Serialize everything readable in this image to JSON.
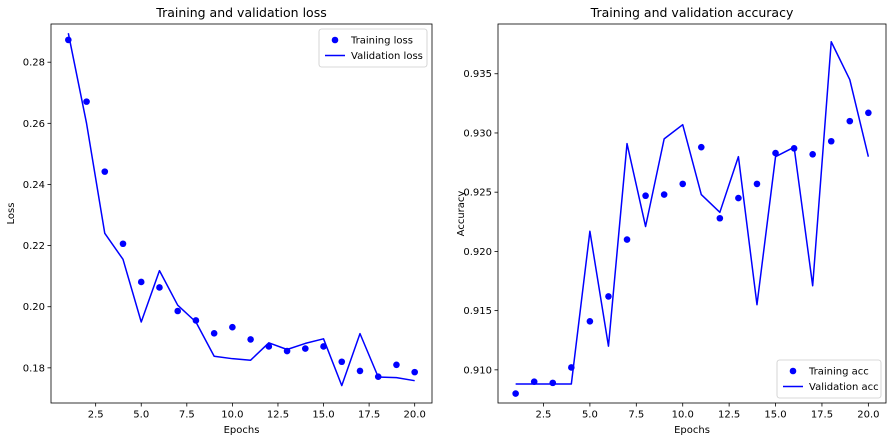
{
  "chart_data": [
    {
      "type": "line",
      "title": "Training and validation loss",
      "xlabel": "Epochs",
      "ylabel": "Loss",
      "xlim": [
        0.05,
        20.95
      ],
      "ylim": [
        0.1685,
        0.2925
      ],
      "x_ticks": [
        2.5,
        5.0,
        7.5,
        10.0,
        12.5,
        15.0,
        17.5,
        20.0
      ],
      "x_tick_labels": [
        "2.5",
        "5.0",
        "7.5",
        "10.0",
        "12.5",
        "15.0",
        "17.5",
        "20.0"
      ],
      "y_ticks": [
        0.18,
        0.2,
        0.22,
        0.24,
        0.26,
        0.28
      ],
      "y_tick_labels": [
        "0.18",
        "0.20",
        "0.22",
        "0.24",
        "0.26",
        "0.28"
      ],
      "legend_position": "top-right",
      "x": [
        1,
        2,
        3,
        4,
        5,
        6,
        7,
        8,
        9,
        10,
        11,
        12,
        13,
        14,
        15,
        16,
        17,
        18,
        19,
        20
      ],
      "series": [
        {
          "name": "Training loss",
          "style": "markers",
          "color": "#0000ff",
          "values": [
            0.2873,
            0.2671,
            0.2442,
            0.2206,
            0.2081,
            0.2063,
            0.1986,
            0.1955,
            0.1913,
            0.1933,
            0.1893,
            0.187,
            0.1855,
            0.1863,
            0.187,
            0.182,
            0.179,
            0.1771,
            0.181,
            0.1786
          ]
        },
        {
          "name": "Validation loss",
          "style": "line",
          "color": "#0000ff",
          "values": [
            0.2895,
            0.26,
            0.224,
            0.2155,
            0.195,
            0.2118,
            0.2005,
            0.195,
            0.1838,
            0.183,
            0.1825,
            0.1882,
            0.186,
            0.188,
            0.1895,
            0.1742,
            0.1912,
            0.177,
            0.1768,
            0.1758
          ]
        }
      ]
    },
    {
      "type": "line",
      "title": "Training and validation accuracy",
      "xlabel": "Epochs",
      "ylabel": "Accuracy",
      "xlim": [
        0.05,
        20.95
      ],
      "ylim": [
        0.9072,
        0.9392
      ],
      "x_ticks": [
        2.5,
        5.0,
        7.5,
        10.0,
        12.5,
        15.0,
        17.5,
        20.0
      ],
      "x_tick_labels": [
        "2.5",
        "5.0",
        "7.5",
        "10.0",
        "12.5",
        "15.0",
        "17.5",
        "20.0"
      ],
      "y_ticks": [
        0.91,
        0.915,
        0.92,
        0.925,
        0.93,
        0.935
      ],
      "y_tick_labels": [
        "0.910",
        "0.915",
        "0.920",
        "0.925",
        "0.930",
        "0.935"
      ],
      "legend_position": "bottom-right",
      "x": [
        1,
        2,
        3,
        4,
        5,
        6,
        7,
        8,
        9,
        10,
        11,
        12,
        13,
        14,
        15,
        16,
        17,
        18,
        19,
        20
      ],
      "series": [
        {
          "name": "Training acc",
          "style": "markers",
          "color": "#0000ff",
          "values": [
            0.908,
            0.909,
            0.9089,
            0.9102,
            0.9141,
            0.9162,
            0.921,
            0.9247,
            0.9248,
            0.9257,
            0.9288,
            0.9228,
            0.9245,
            0.9257,
            0.9283,
            0.9287,
            0.9282,
            0.9293,
            0.931,
            0.9317
          ]
        },
        {
          "name": "Validation acc",
          "style": "line",
          "color": "#0000ff",
          "values": [
            0.9088,
            0.9088,
            0.9088,
            0.9088,
            0.9217,
            0.912,
            0.9291,
            0.9221,
            0.9295,
            0.9307,
            0.9248,
            0.9233,
            0.928,
            0.9155,
            0.928,
            0.9288,
            0.9171,
            0.9377,
            0.9345,
            0.928
          ]
        }
      ]
    }
  ]
}
